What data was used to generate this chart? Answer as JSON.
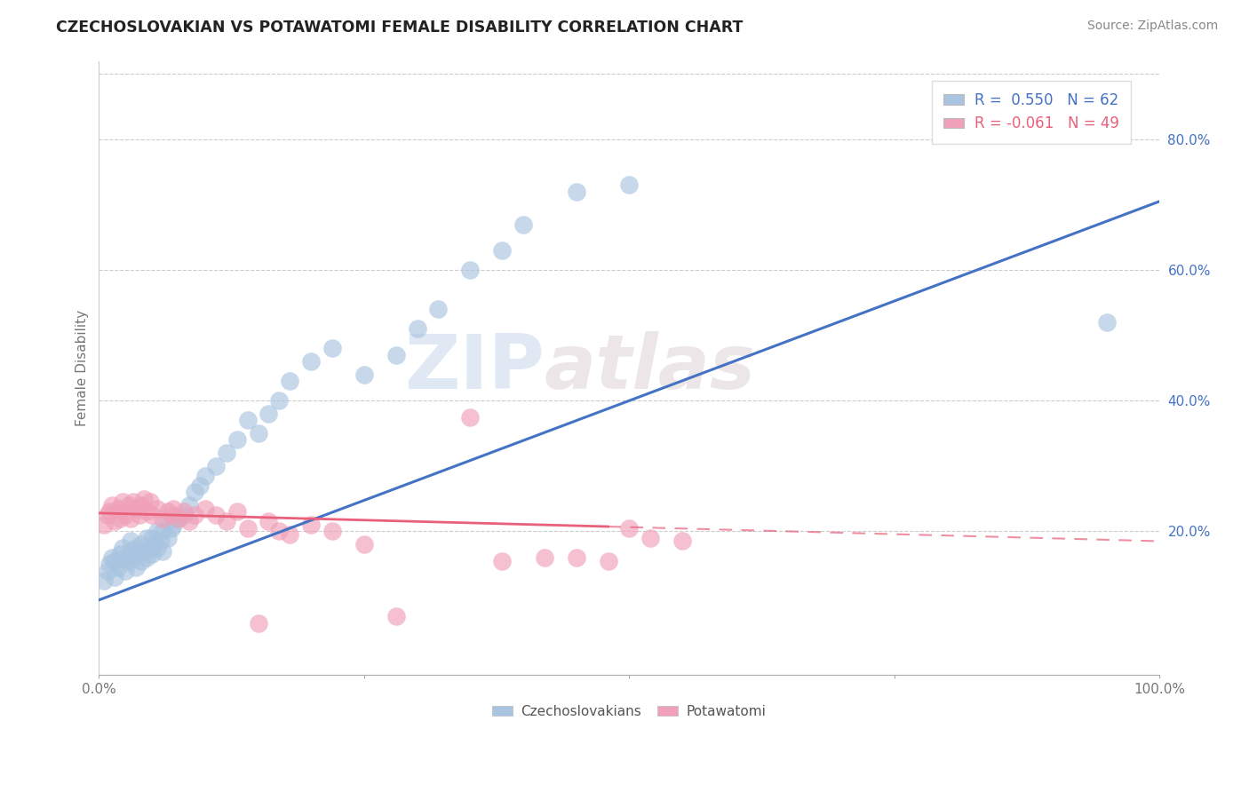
{
  "title": "CZECHOSLOVAKIAN VS POTAWATOMI FEMALE DISABILITY CORRELATION CHART",
  "source": "Source: ZipAtlas.com",
  "ylabel": "Female Disability",
  "xlim": [
    0,
    1.0
  ],
  "ylim": [
    -0.02,
    0.92
  ],
  "ytick_positions": [
    0.2,
    0.4,
    0.6,
    0.8
  ],
  "yticklabels": [
    "20.0%",
    "40.0%",
    "60.0%",
    "80.0%"
  ],
  "grid_color": "#cccccc",
  "background_color": "#ffffff",
  "legend_r1": "R =  0.550",
  "legend_n1": "N = 62",
  "legend_r2": "R = -0.061",
  "legend_n2": "N = 49",
  "blue_color": "#a8c4e0",
  "pink_color": "#f0a0b8",
  "blue_line_color": "#4472c4",
  "pink_line_color": "#e8607a",
  "watermark_zip": "ZIP",
  "watermark_atlas": "atlas",
  "czecho_x": [
    0.005,
    0.008,
    0.01,
    0.012,
    0.015,
    0.015,
    0.018,
    0.02,
    0.022,
    0.025,
    0.025,
    0.028,
    0.03,
    0.03,
    0.032,
    0.035,
    0.035,
    0.038,
    0.04,
    0.04,
    0.042,
    0.045,
    0.045,
    0.048,
    0.05,
    0.05,
    0.052,
    0.055,
    0.055,
    0.058,
    0.06,
    0.06,
    0.065,
    0.065,
    0.068,
    0.07,
    0.075,
    0.08,
    0.085,
    0.09,
    0.095,
    0.1,
    0.11,
    0.12,
    0.13,
    0.14,
    0.15,
    0.16,
    0.17,
    0.18,
    0.2,
    0.22,
    0.25,
    0.28,
    0.3,
    0.32,
    0.35,
    0.38,
    0.4,
    0.45,
    0.5,
    0.95
  ],
  "czecho_y": [
    0.125,
    0.14,
    0.15,
    0.16,
    0.13,
    0.155,
    0.145,
    0.165,
    0.175,
    0.14,
    0.16,
    0.155,
    0.17,
    0.185,
    0.16,
    0.145,
    0.175,
    0.165,
    0.155,
    0.18,
    0.17,
    0.16,
    0.19,
    0.175,
    0.165,
    0.19,
    0.18,
    0.175,
    0.2,
    0.185,
    0.17,
    0.2,
    0.19,
    0.215,
    0.205,
    0.21,
    0.22,
    0.225,
    0.24,
    0.26,
    0.27,
    0.285,
    0.3,
    0.32,
    0.34,
    0.37,
    0.35,
    0.38,
    0.4,
    0.43,
    0.46,
    0.48,
    0.44,
    0.47,
    0.51,
    0.54,
    0.6,
    0.63,
    0.67,
    0.72,
    0.73,
    0.52
  ],
  "potawatomi_x": [
    0.005,
    0.008,
    0.01,
    0.012,
    0.015,
    0.018,
    0.02,
    0.022,
    0.025,
    0.028,
    0.03,
    0.032,
    0.035,
    0.038,
    0.04,
    0.042,
    0.045,
    0.048,
    0.05,
    0.055,
    0.06,
    0.065,
    0.068,
    0.07,
    0.075,
    0.08,
    0.085,
    0.09,
    0.1,
    0.11,
    0.12,
    0.13,
    0.14,
    0.15,
    0.16,
    0.17,
    0.18,
    0.2,
    0.22,
    0.25,
    0.28,
    0.35,
    0.38,
    0.42,
    0.45,
    0.48,
    0.5,
    0.52,
    0.55
  ],
  "potawatomi_y": [
    0.21,
    0.225,
    0.23,
    0.24,
    0.215,
    0.235,
    0.22,
    0.245,
    0.225,
    0.24,
    0.22,
    0.245,
    0.235,
    0.225,
    0.24,
    0.25,
    0.23,
    0.245,
    0.225,
    0.235,
    0.22,
    0.23,
    0.225,
    0.235,
    0.22,
    0.23,
    0.215,
    0.225,
    0.235,
    0.225,
    0.215,
    0.23,
    0.205,
    0.06,
    0.215,
    0.2,
    0.195,
    0.21,
    0.2,
    0.18,
    0.07,
    0.375,
    0.155,
    0.16,
    0.16,
    0.155,
    0.205,
    0.19,
    0.185
  ],
  "blue_line_x0": 0.0,
  "blue_line_y0": 0.095,
  "blue_line_x1": 1.0,
  "blue_line_y1": 0.705,
  "pink_line_x0": 0.0,
  "pink_line_y0": 0.228,
  "pink_line_x1": 1.0,
  "pink_line_y1": 0.185
}
